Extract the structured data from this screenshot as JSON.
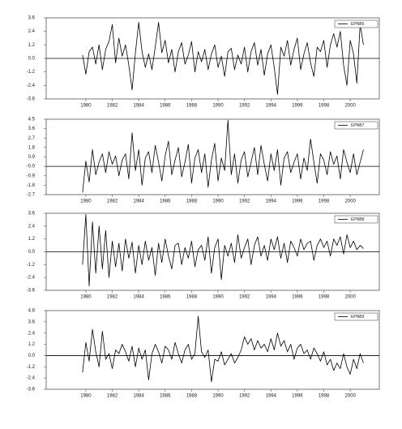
{
  "chart_data": [
    {
      "type": "line",
      "x": [
        1979.75,
        1980,
        1980.25,
        1980.5,
        1980.75,
        1981,
        1981.25,
        1981.5,
        1981.75,
        1982,
        1982.25,
        1982.5,
        1982.75,
        1983,
        1983.25,
        1983.5,
        1983.75,
        1984,
        1984.25,
        1984.5,
        1984.75,
        1985,
        1985.25,
        1985.5,
        1985.75,
        1986,
        1986.25,
        1986.5,
        1986.75,
        1987,
        1987.25,
        1987.5,
        1987.75,
        1988,
        1988.25,
        1988.5,
        1988.75,
        1989,
        1989.25,
        1989.5,
        1989.75,
        1990,
        1990.25,
        1990.5,
        1990.75,
        1991,
        1991.25,
        1991.5,
        1991.75,
        1992,
        1992.25,
        1992.5,
        1992.75,
        1993,
        1993.25,
        1993.5,
        1993.75,
        1994,
        1994.25,
        1994.5,
        1994.75,
        1995,
        1995.25,
        1995.5,
        1995.75,
        1996,
        1996.25,
        1996.5,
        1996.75,
        1997,
        1997.25,
        1997.5,
        1997.75,
        1998,
        1998.25,
        1998.5,
        1998.75,
        1999,
        1999.25,
        1999.5,
        1999.75,
        2000,
        2000.25,
        2000.5,
        2000.75,
        2001
      ],
      "series": [
        {
          "name": "EPNB6",
          "color": "#000000",
          "values": [
            0.3,
            -1.4,
            0.6,
            1.0,
            -0.5,
            1.2,
            -1.0,
            0.8,
            1.5,
            3.0,
            -0.4,
            1.8,
            0.2,
            1.2,
            -0.6,
            -2.8,
            0.5,
            3.2,
            0.6,
            -0.8,
            0.4,
            -1.0,
            1.0,
            3.2,
            0.5,
            1.6,
            -0.4,
            0.8,
            -1.2,
            0.6,
            1.4,
            -0.5,
            0.3,
            1.5,
            -1.2,
            0.6,
            -0.3,
            0.8,
            -1.0,
            0.4,
            1.2,
            -0.8,
            0.2,
            -1.6,
            0.6,
            0.9,
            -1.0,
            0.3,
            -0.5,
            1.0,
            -1.2,
            0.6,
            1.4,
            -0.6,
            0.8,
            -1.5,
            0.4,
            1.2,
            -0.8,
            -3.2,
            1.0,
            0.2,
            1.6,
            -0.6,
            0.8,
            1.8,
            -1.0,
            0.4,
            1.4,
            -0.4,
            -1.6,
            1.0,
            0.6,
            1.6,
            -0.8,
            1.2,
            2.2,
            1.0,
            2.4,
            -0.6,
            -2.4,
            1.6,
            0.4,
            -2.2,
            3.0,
            1.2
          ]
        }
      ],
      "xlim": [
        1977,
        2002.2
      ],
      "xticks": [
        1980,
        1982,
        1984,
        1986,
        1988,
        1990,
        1992,
        1994,
        1996,
        1998,
        2000
      ],
      "ylim": [
        -3.6,
        3.6
      ],
      "yticks": [
        3.6,
        2.4,
        1.2,
        {
          "value": 0,
          "label": "0.0"
        },
        -1.2,
        -2.4,
        -3.6
      ],
      "legend": "upper right"
    },
    {
      "type": "line",
      "x": [
        1979.75,
        1980,
        1980.25,
        1980.5,
        1980.75,
        1981,
        1981.25,
        1981.5,
        1981.75,
        1982,
        1982.25,
        1982.5,
        1982.75,
        1983,
        1983.25,
        1983.5,
        1983.75,
        1984,
        1984.25,
        1984.5,
        1984.75,
        1985,
        1985.25,
        1985.5,
        1985.75,
        1986,
        1986.25,
        1986.5,
        1986.75,
        1987,
        1987.25,
        1987.5,
        1987.75,
        1988,
        1988.25,
        1988.5,
        1988.75,
        1989,
        1989.25,
        1989.5,
        1989.75,
        1990,
        1990.25,
        1990.5,
        1990.75,
        1991,
        1991.25,
        1991.5,
        1991.75,
        1992,
        1992.25,
        1992.5,
        1992.75,
        1993,
        1993.25,
        1993.5,
        1993.75,
        1994,
        1994.25,
        1994.5,
        1994.75,
        1995,
        1995.25,
        1995.5,
        1995.75,
        1996,
        1996.25,
        1996.5,
        1996.75,
        1997,
        1997.25,
        1997.5,
        1997.75,
        1998,
        1998.25,
        1998.5,
        1998.75,
        1999,
        1999.25,
        1999.5,
        1999.75,
        2000,
        2000.25,
        2000.5,
        2000.75,
        2001
      ],
      "series": [
        {
          "name": "EPNB7",
          "color": "#000000",
          "values": [
            -2.5,
            0.5,
            -1.5,
            1.6,
            -0.8,
            0.4,
            1.2,
            -0.6,
            1.4,
            0.2,
            1.0,
            -0.9,
            0.6,
            1.2,
            -1.2,
            3.2,
            -0.4,
            1.6,
            -1.8,
            0.8,
            1.4,
            -0.6,
            2.0,
            0.4,
            -1.4,
            1.0,
            2.4,
            -0.8,
            0.6,
            1.8,
            -1.0,
            0.4,
            2.1,
            -1.6,
            0.8,
            1.6,
            -0.6,
            1.2,
            -2.0,
            0.6,
            2.2,
            -1.4,
            0.8,
            -0.4,
            4.4,
            -0.8,
            1.2,
            -1.6,
            0.6,
            1.4,
            -1.0,
            0.4,
            1.8,
            -0.8,
            2.0,
            0.2,
            -1.4,
            1.2,
            -0.4,
            1.6,
            -1.8,
            0.8,
            1.4,
            -0.6,
            0.4,
            1.2,
            -1.2,
            0.8,
            -0.4,
            2.6,
            0.4,
            -1.6,
            1.2,
            0.6,
            -0.8,
            1.4,
            0.2,
            1.0,
            -1.2,
            1.6,
            0.4,
            -0.6,
            1.2,
            -0.8,
            0.4,
            1.6
          ]
        }
      ],
      "xlim": [
        1977,
        2002.2
      ],
      "xticks": [
        1980,
        1982,
        1984,
        1986,
        1988,
        1990,
        1992,
        1994,
        1996,
        1998,
        2000
      ],
      "ylim": [
        -2.7,
        4.5
      ],
      "yticks": [
        4.5,
        3.6,
        2.7,
        1.8,
        0.9,
        {
          "value": 0,
          "label": "-0.0"
        },
        -0.9,
        -1.8,
        -2.7
      ],
      "legend": "upper right"
    },
    {
      "type": "line",
      "x": [
        1979.75,
        1980,
        1980.25,
        1980.5,
        1980.75,
        1981,
        1981.25,
        1981.5,
        1981.75,
        1982,
        1982.25,
        1982.5,
        1982.75,
        1983,
        1983.25,
        1983.5,
        1983.75,
        1984,
        1984.25,
        1984.5,
        1984.75,
        1985,
        1985.25,
        1985.5,
        1985.75,
        1986,
        1986.25,
        1986.5,
        1986.75,
        1987,
        1987.25,
        1987.5,
        1987.75,
        1988,
        1988.25,
        1988.5,
        1988.75,
        1989,
        1989.25,
        1989.5,
        1989.75,
        1990,
        1990.25,
        1990.5,
        1990.75,
        1991,
        1991.25,
        1991.5,
        1991.75,
        1992,
        1992.25,
        1992.5,
        1992.75,
        1993,
        1993.25,
        1993.5,
        1993.75,
        1994,
        1994.25,
        1994.5,
        1994.75,
        1995,
        1995.25,
        1995.5,
        1995.75,
        1996,
        1996.25,
        1996.5,
        1996.75,
        1997,
        1997.25,
        1997.5,
        1997.75,
        1998,
        1998.25,
        1998.5,
        1998.75,
        1999,
        1999.25,
        1999.5,
        1999.75,
        2000,
        2000.25,
        2000.5,
        2000.75,
        2001
      ],
      "series": [
        {
          "name": "EPNB8",
          "color": "#000000",
          "values": [
            -1.2,
            3.5,
            -3.2,
            2.8,
            -2.0,
            2.4,
            -1.6,
            2.0,
            -2.4,
            1.0,
            -1.4,
            0.8,
            -1.8,
            1.2,
            -0.6,
            0.9,
            -2.0,
            0.6,
            -1.2,
            1.0,
            -0.8,
            0.4,
            -2.2,
            0.8,
            -1.0,
            1.2,
            -0.4,
            -1.6,
            0.6,
            0.8,
            -1.2,
            0.4,
            -0.6,
            1.0,
            -1.4,
            0.2,
            0.6,
            -0.8,
            1.4,
            -2.0,
            0.4,
            1.2,
            -2.6,
            0.6,
            -0.4,
            0.8,
            -1.0,
            1.6,
            -0.6,
            0.4,
            1.2,
            -1.2,
            0.6,
            1.4,
            -0.4,
            0.6,
            -0.8,
            1.2,
            0.2,
            1.4,
            -0.6,
            0.8,
            -1.0,
            1.0,
            0.4,
            -0.4,
            1.2,
            0.2,
            0.8,
            1.0,
            -0.8,
            0.6,
            1.2,
            0.4,
            1.0,
            -0.4,
            1.2,
            0.6,
            1.4,
            -0.2,
            1.6,
            0.4,
            1.0,
            0.2,
            0.6,
            0.3
          ]
        }
      ],
      "xlim": [
        1977,
        2002.2
      ],
      "xticks": [
        1980,
        1982,
        1984,
        1986,
        1988,
        1990,
        1992,
        1994,
        1996,
        1998,
        2000
      ],
      "ylim": [
        -3.6,
        3.6
      ],
      "yticks": [
        3.6,
        2.4,
        1.2,
        {
          "value": 0,
          "label": "0.0"
        },
        -1.2,
        -2.4,
        -3.6
      ],
      "legend": "upper right"
    },
    {
      "type": "line",
      "x": [
        1979.75,
        1980,
        1980.25,
        1980.5,
        1980.75,
        1981,
        1981.25,
        1981.5,
        1981.75,
        1982,
        1982.25,
        1982.5,
        1982.75,
        1983,
        1983.25,
        1983.5,
        1983.75,
        1984,
        1984.25,
        1984.5,
        1984.75,
        1985,
        1985.25,
        1985.5,
        1985.75,
        1986,
        1986.25,
        1986.5,
        1986.75,
        1987,
        1987.25,
        1987.5,
        1987.75,
        1988,
        1988.25,
        1988.5,
        1988.75,
        1989,
        1989.25,
        1989.5,
        1989.75,
        1990,
        1990.25,
        1990.5,
        1990.75,
        1991,
        1991.25,
        1991.5,
        1991.75,
        1992,
        1992.25,
        1992.5,
        1992.75,
        1993,
        1993.25,
        1993.5,
        1993.75,
        1994,
        1994.25,
        1994.5,
        1994.75,
        1995,
        1995.25,
        1995.5,
        1995.75,
        1996,
        1996.25,
        1996.5,
        1996.75,
        1997,
        1997.25,
        1997.5,
        1997.75,
        1998,
        1998.25,
        1998.5,
        1998.75,
        1999,
        1999.25,
        1999.5,
        1999.75,
        2000,
        2000.25,
        2000.5,
        2000.75,
        2001
      ],
      "series": [
        {
          "name": "EPNB9",
          "color": "#000000",
          "values": [
            -1.8,
            1.4,
            -0.6,
            2.8,
            0.4,
            -1.2,
            2.6,
            -0.4,
            0.2,
            -1.4,
            0.6,
            0.2,
            1.2,
            0.4,
            -0.6,
            1.0,
            -1.2,
            0.8,
            -0.4,
            0.6,
            -2.6,
            0.2,
            1.2,
            0.4,
            -0.8,
            1.0,
            0.6,
            -0.4,
            1.4,
            0.2,
            -0.8,
            0.6,
            1.2,
            -0.4,
            0.2,
            4.2,
            0.4,
            -0.2,
            0.6,
            -2.8,
            -0.4,
            -0.6,
            0.4,
            -1.0,
            -0.4,
            0.2,
            -0.8,
            -0.2,
            0.6,
            2.0,
            1.2,
            1.8,
            0.6,
            1.6,
            0.8,
            1.2,
            0.4,
            1.8,
            0.6,
            2.4,
            1.0,
            1.6,
            0.4,
            1.2,
            -0.4,
            0.8,
            1.2,
            0.2,
            0.6,
            -0.4,
            0.8,
            0.2,
            -0.6,
            0.4,
            -1.0,
            -0.4,
            -1.6,
            -0.8,
            -1.4,
            0.2,
            -1.2,
            -2.0,
            -0.4,
            -1.4,
            0.2,
            -0.8
          ]
        }
      ],
      "xlim": [
        1977,
        2002.2
      ],
      "xticks": [
        1980,
        1982,
        1984,
        1986,
        1988,
        1990,
        1992,
        1994,
        1996,
        1998,
        2000
      ],
      "ylim": [
        -3.6,
        4.8
      ],
      "yticks": [
        4.8,
        3.6,
        2.4,
        1.2,
        {
          "value": 0,
          "label": "0.0"
        },
        -1.2,
        -2.4,
        -3.6
      ],
      "legend": "upper right"
    }
  ]
}
